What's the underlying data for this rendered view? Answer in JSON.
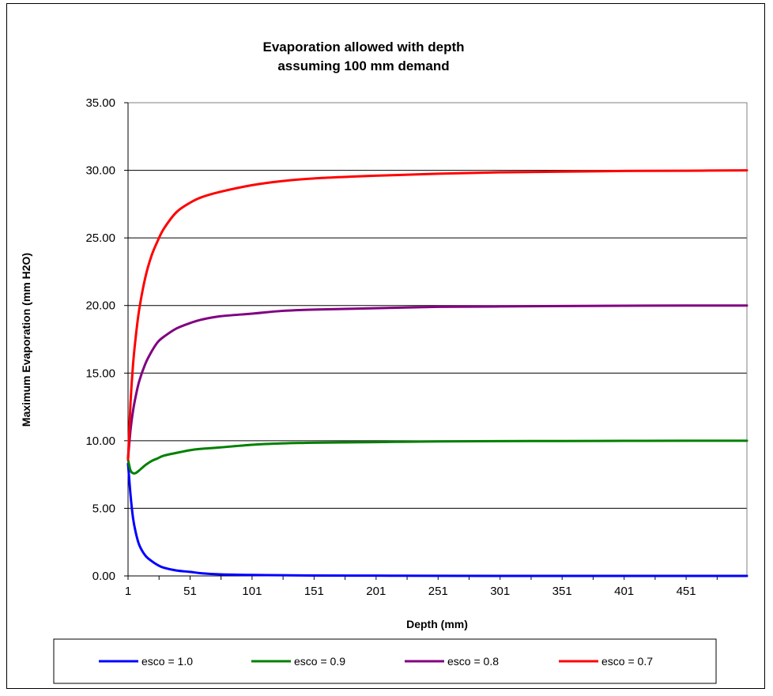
{
  "chart_data": {
    "type": "line",
    "title": [
      "Evaporation allowed with depth",
      "assuming 100 mm demand"
    ],
    "xlabel": "Depth (mm)",
    "ylabel": "Maximum Evaporation (mm H2O)",
    "x_tick_labels": [
      "1",
      "51",
      "101",
      "151",
      "201",
      "251",
      "301",
      "351",
      "401",
      "451"
    ],
    "y_tick_labels": [
      "0.00",
      "5.00",
      "10.00",
      "15.00",
      "20.00",
      "25.00",
      "30.00",
      "35.00"
    ],
    "xlim": [
      1,
      500
    ],
    "ylim": [
      0,
      35
    ],
    "grid": "horizontal",
    "legend_position": "bottom",
    "x": [
      1,
      3,
      5,
      7,
      10,
      15,
      20,
      25,
      30,
      40,
      51,
      60,
      75,
      101,
      125,
      151,
      201,
      251,
      301,
      351,
      401,
      451,
      500
    ],
    "series": [
      {
        "name": "esco = 1.0",
        "color": "#0000ff",
        "values": [
          8.3,
          6.0,
          4.3,
          3.3,
          2.3,
          1.5,
          1.1,
          0.8,
          0.6,
          0.4,
          0.3,
          0.2,
          0.12,
          0.07,
          0.05,
          0.03,
          0.02,
          0.01,
          0.0,
          0.0,
          0.0,
          0.0,
          0.0
        ]
      },
      {
        "name": "esco = 0.9",
        "color": "#008000",
        "values": [
          8.6,
          7.8,
          7.6,
          7.6,
          7.8,
          8.2,
          8.5,
          8.7,
          8.9,
          9.1,
          9.3,
          9.4,
          9.5,
          9.7,
          9.8,
          9.85,
          9.9,
          9.95,
          9.97,
          9.98,
          9.99,
          10.0,
          10.0
        ]
      },
      {
        "name": "esco = 0.8",
        "color": "#800080",
        "values": [
          8.7,
          10.8,
          12.2,
          13.2,
          14.4,
          15.7,
          16.6,
          17.3,
          17.7,
          18.3,
          18.7,
          18.95,
          19.2,
          19.4,
          19.6,
          19.7,
          19.8,
          19.9,
          19.93,
          19.96,
          19.98,
          20.0,
          20.0
        ]
      },
      {
        "name": "esco = 0.7",
        "color": "#ff0000",
        "values": [
          8.6,
          12.8,
          15.6,
          17.5,
          19.7,
          22.1,
          23.7,
          24.8,
          25.7,
          26.9,
          27.6,
          28.0,
          28.4,
          28.9,
          29.2,
          29.4,
          29.6,
          29.75,
          29.85,
          29.9,
          29.95,
          29.97,
          30.0
        ]
      }
    ]
  }
}
